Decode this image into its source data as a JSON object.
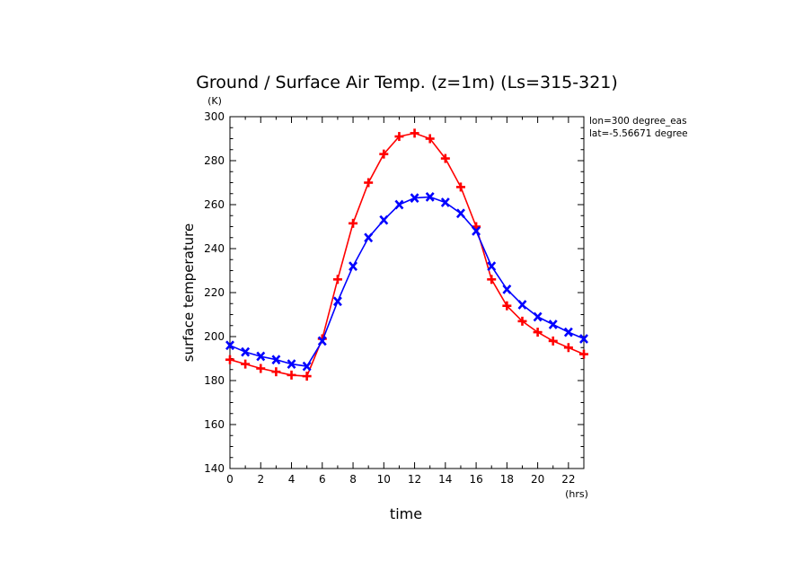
{
  "chart_data": {
    "type": "line",
    "title": "Ground / Surface Air Temp. (z=1m) (Ls=315-321)",
    "ylabel": "surface temperature",
    "yunit": "(K)",
    "xlabel": "time",
    "xunit": "(hrs)",
    "xlim": [
      0,
      23
    ],
    "ylim": [
      140,
      300
    ],
    "xticks": [
      0,
      2,
      4,
      6,
      8,
      10,
      12,
      14,
      16,
      18,
      20,
      22
    ],
    "yticks": [
      140,
      160,
      180,
      200,
      220,
      240,
      260,
      280,
      300
    ],
    "annotations": [
      "lon=300 degree_eas",
      "lat=-5.56671 degree"
    ],
    "x": [
      0,
      1,
      2,
      3,
      4,
      5,
      6,
      7,
      8,
      9,
      10,
      11,
      12,
      13,
      14,
      15,
      16,
      17,
      18,
      19,
      20,
      21,
      22,
      23
    ],
    "series": [
      {
        "color": "#ff0000",
        "marker": "plus",
        "values": [
          189.5,
          187.5,
          185.5,
          184,
          182.5,
          182,
          199,
          226,
          251.5,
          270,
          283,
          291,
          292.5,
          290,
          281,
          268,
          250,
          226,
          214,
          207,
          202,
          198,
          195,
          192
        ]
      },
      {
        "color": "#0000ff",
        "marker": "cross",
        "values": [
          196,
          193,
          191,
          189.5,
          187.5,
          186.5,
          198,
          216,
          232,
          245,
          253,
          260,
          263,
          263.5,
          261,
          256,
          248,
          232,
          221.5,
          214.5,
          209,
          205.5,
          202,
          199
        ]
      }
    ]
  }
}
